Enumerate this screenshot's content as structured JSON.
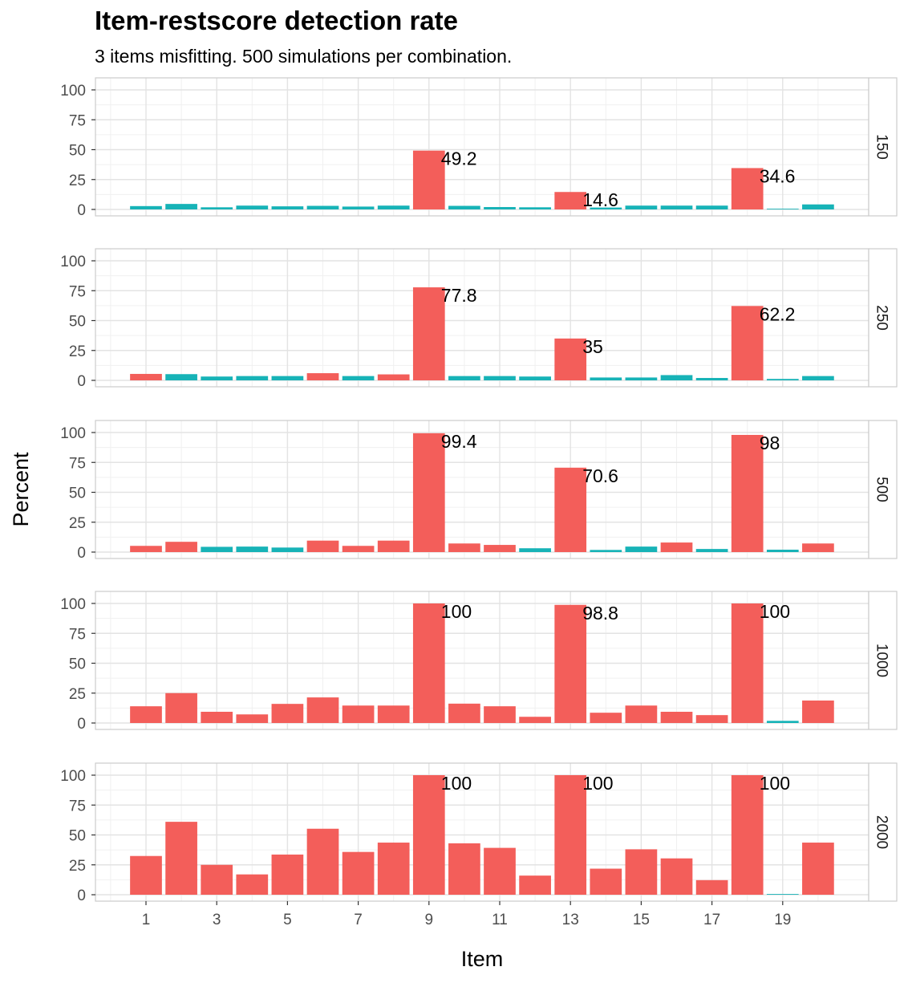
{
  "chart_data": {
    "type": "bar",
    "title": "Item-restscore detection rate",
    "subtitle": "3 items misfitting. 500 simulations per combination.",
    "xlabel": "Item",
    "ylabel": "Percent",
    "x_ticks": [
      "1",
      "3",
      "5",
      "7",
      "9",
      "11",
      "13",
      "15",
      "17",
      "19"
    ],
    "y_ticks": [
      "0",
      "25",
      "50",
      "75",
      "100"
    ],
    "ylim": [
      0,
      105
    ],
    "grid": true,
    "legend": "none",
    "colors": {
      "detected": "#F35E5A",
      "other": "#17B3B7"
    },
    "items": [
      1,
      2,
      3,
      4,
      5,
      6,
      7,
      8,
      9,
      10,
      11,
      12,
      13,
      14,
      15,
      16,
      17,
      18,
      19,
      20
    ],
    "panels": [
      {
        "facet": "150",
        "values": [
          2.8,
          4.6,
          1.8,
          3.2,
          2.6,
          3.0,
          2.4,
          3.2,
          49.2,
          3.0,
          2.0,
          1.8,
          14.6,
          1.6,
          3.2,
          3.2,
          3.2,
          34.6,
          0.6,
          4.2
        ],
        "colors": [
          "other",
          "other",
          "other",
          "other",
          "other",
          "other",
          "other",
          "other",
          "detected",
          "other",
          "other",
          "other",
          "detected",
          "other",
          "other",
          "other",
          "other",
          "detected",
          "other",
          "other"
        ],
        "labels": [
          {
            "item": 9,
            "text": "49.2"
          },
          {
            "item": 13,
            "text": "14.6"
          },
          {
            "item": 18,
            "text": "34.6"
          }
        ]
      },
      {
        "facet": "250",
        "values": [
          5.4,
          5.2,
          3.2,
          3.6,
          3.6,
          6.0,
          3.6,
          5.0,
          77.8,
          3.6,
          3.6,
          3.2,
          35.0,
          2.4,
          2.4,
          4.4,
          2.0,
          62.2,
          1.2,
          3.6
        ],
        "colors": [
          "detected",
          "other",
          "other",
          "other",
          "other",
          "detected",
          "other",
          "detected",
          "detected",
          "other",
          "other",
          "other",
          "detected",
          "other",
          "other",
          "other",
          "other",
          "detected",
          "other",
          "other"
        ],
        "labels": [
          {
            "item": 9,
            "text": "77.8"
          },
          {
            "item": 13,
            "text": "35"
          },
          {
            "item": 18,
            "text": "62.2"
          }
        ]
      },
      {
        "facet": "500",
        "values": [
          5.2,
          8.6,
          4.4,
          4.6,
          3.8,
          9.6,
          5.2,
          9.6,
          99.4,
          7.2,
          6.0,
          3.2,
          70.6,
          1.8,
          4.6,
          8.0,
          2.6,
          98.0,
          2.0,
          7.2
        ],
        "colors": [
          "detected",
          "detected",
          "other",
          "other",
          "other",
          "detected",
          "detected",
          "detected",
          "detected",
          "detected",
          "detected",
          "other",
          "detected",
          "other",
          "other",
          "detected",
          "other",
          "detected",
          "other",
          "detected"
        ],
        "labels": [
          {
            "item": 9,
            "text": "99.4"
          },
          {
            "item": 13,
            "text": "70.6"
          },
          {
            "item": 18,
            "text": "98"
          }
        ]
      },
      {
        "facet": "1000",
        "values": [
          14.0,
          25.0,
          9.4,
          7.2,
          16.0,
          21.4,
          14.6,
          14.6,
          100,
          16.2,
          14.0,
          5.2,
          98.8,
          8.6,
          14.6,
          9.4,
          6.6,
          100,
          1.8,
          18.8
        ],
        "colors": [
          "detected",
          "detected",
          "detected",
          "detected",
          "detected",
          "detected",
          "detected",
          "detected",
          "detected",
          "detected",
          "detected",
          "detected",
          "detected",
          "detected",
          "detected",
          "detected",
          "detected",
          "detected",
          "other",
          "detected"
        ],
        "labels": [
          {
            "item": 9,
            "text": "100"
          },
          {
            "item": 13,
            "text": "98.8"
          },
          {
            "item": 18,
            "text": "100"
          }
        ]
      },
      {
        "facet": "2000",
        "values": [
          32.4,
          61.0,
          25.0,
          17.0,
          33.6,
          55.2,
          35.8,
          43.6,
          100,
          43.0,
          39.2,
          16.0,
          100,
          21.8,
          38.0,
          30.4,
          12.2,
          100,
          0.6,
          43.6
        ],
        "colors": [
          "detected",
          "detected",
          "detected",
          "detected",
          "detected",
          "detected",
          "detected",
          "detected",
          "detected",
          "detected",
          "detected",
          "detected",
          "detected",
          "detected",
          "detected",
          "detected",
          "detected",
          "detected",
          "other",
          "detected"
        ],
        "labels": [
          {
            "item": 9,
            "text": "100"
          },
          {
            "item": 13,
            "text": "100"
          },
          {
            "item": 18,
            "text": "100"
          }
        ]
      }
    ]
  }
}
